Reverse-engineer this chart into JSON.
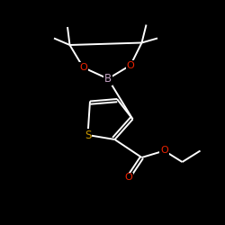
{
  "bg_color": "#000000",
  "bond_color": "#ffffff",
  "atom_colors": {
    "B": "#c0a0c0",
    "O": "#ee2200",
    "S": "#cc9900",
    "C": "#ffffff"
  },
  "figsize": [
    2.5,
    2.5
  ],
  "dpi": 100,
  "lw": 1.4
}
